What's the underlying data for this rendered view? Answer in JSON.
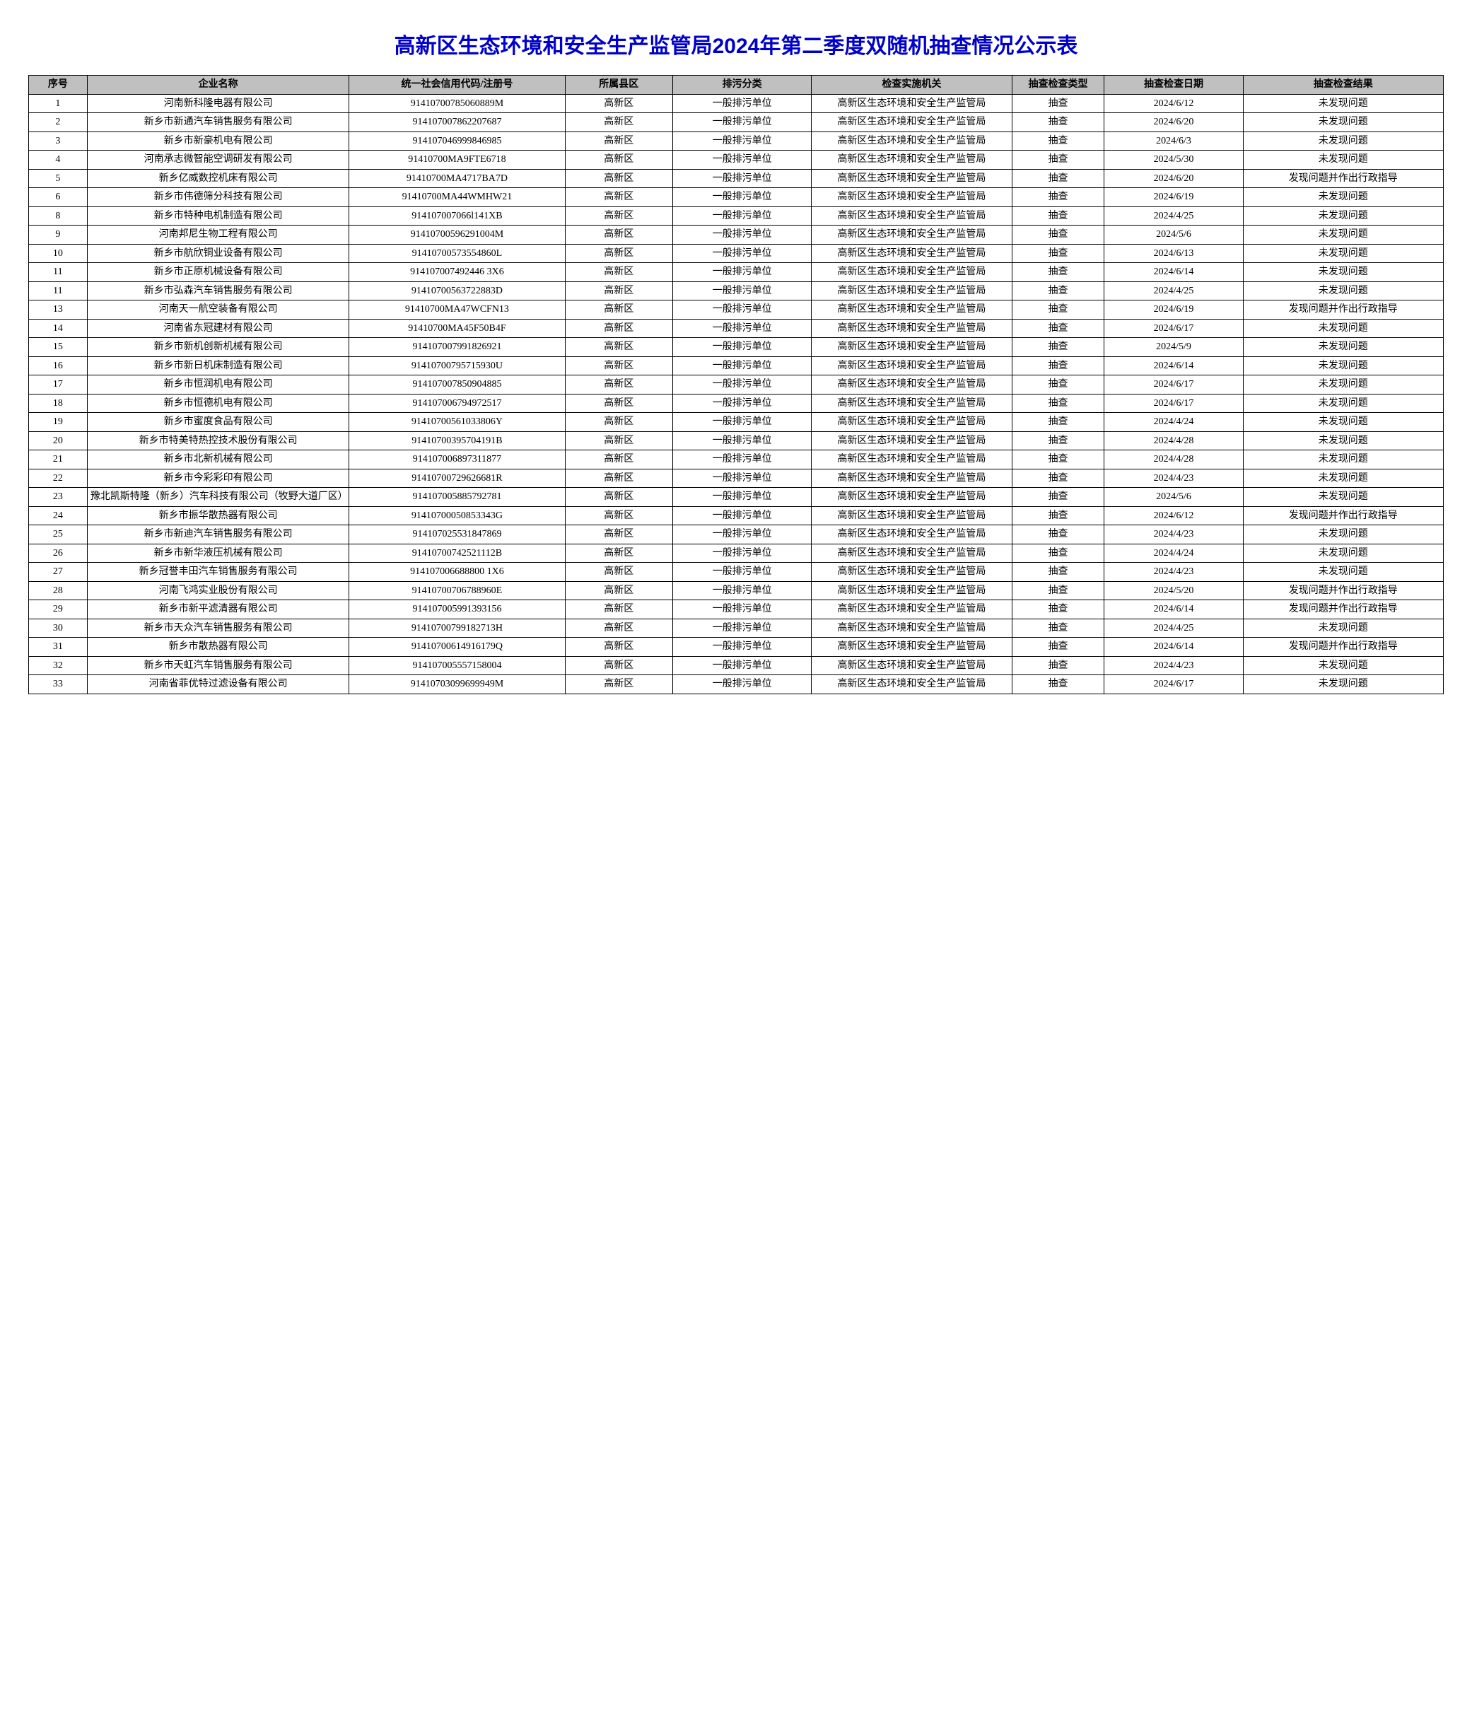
{
  "title": "高新区生态环境和安全生产监管局2024年第二季度双随机抽查情况公示表",
  "columns": [
    "序号",
    "企业名称",
    "统一社会信用代码/注册号",
    "所属县区",
    "排污分类",
    "检查实施机关",
    "抽查检查类型",
    "抽查检查日期",
    "抽查检查结果"
  ],
  "rows": [
    [
      "1",
      "河南新科隆电器有限公司",
      "91410700785060889M",
      "高新区",
      "一般排污单位",
      "高新区生态环境和安全生产监管局",
      "抽查",
      "2024/6/12",
      "未发现问题"
    ],
    [
      "2",
      "新乡市新通汽车销售服务有限公司",
      "914107007862207687",
      "高新区",
      "一般排污单位",
      "高新区生态环境和安全生产监管局",
      "抽查",
      "2024/6/20",
      "未发现问题"
    ],
    [
      "3",
      "新乡市新豪机电有限公司",
      "914107046999846985",
      "高新区",
      "一般排污单位",
      "高新区生态环境和安全生产监管局",
      "抽查",
      "2024/6/3",
      "未发现问题"
    ],
    [
      "4",
      "河南承志微智能空调研发有限公司",
      "91410700MA9FTE6718",
      "高新区",
      "一般排污单位",
      "高新区生态环境和安全生产监管局",
      "抽查",
      "2024/5/30",
      "未发现问题"
    ],
    [
      "5",
      "新乡亿威数控机床有限公司",
      "91410700MA4717BA7D",
      "高新区",
      "一般排污单位",
      "高新区生态环境和安全生产监管局",
      "抽查",
      "2024/6/20",
      "发现问题并作出行政指导"
    ],
    [
      "6",
      "新乡市伟德筛分科技有限公司",
      "91410700MA44WMHW21",
      "高新区",
      "一般排污单位",
      "高新区生态环境和安全生产监管局",
      "抽查",
      "2024/6/19",
      "未发现问题"
    ],
    [
      "8",
      "新乡市特种电机制造有限公司",
      "914107007066l141XB",
      "高新区",
      "一般排污单位",
      "高新区生态环境和安全生产监管局",
      "抽查",
      "2024/4/25",
      "未发现问题"
    ],
    [
      "9",
      "河南邦尼生物工程有限公司",
      "91410700596291004M",
      "高新区",
      "一般排污单位",
      "高新区生态环境和安全生产监管局",
      "抽查",
      "2024/5/6",
      "未发现问题"
    ],
    [
      "10",
      "新乡市航欣铜业设备有限公司",
      "91410700573554860L",
      "高新区",
      "一般排污单位",
      "高新区生态环境和安全生产监管局",
      "抽查",
      "2024/6/13",
      "未发现问题"
    ],
    [
      "11",
      "新乡市正原机械设备有限公司",
      "914107007492446 3X6",
      "高新区",
      "一般排污单位",
      "高新区生态环境和安全生产监管局",
      "抽查",
      "2024/6/14",
      "未发现问题"
    ],
    [
      "11",
      "新乡市弘森汽车销售服务有限公司",
      "91410700563722883D",
      "高新区",
      "一般排污单位",
      "高新区生态环境和安全生产监管局",
      "抽查",
      "2024/4/25",
      "未发现问题"
    ],
    [
      "13",
      "河南天一航空装备有限公司",
      "91410700MA47WCFN13",
      "高新区",
      "一般排污单位",
      "高新区生态环境和安全生产监管局",
      "抽查",
      "2024/6/19",
      "发现问题并作出行政指导"
    ],
    [
      "14",
      "河南省东冠建材有限公司",
      "91410700MA45F50B4F",
      "高新区",
      "一般排污单位",
      "高新区生态环境和安全生产监管局",
      "抽查",
      "2024/6/17",
      "未发现问题"
    ],
    [
      "15",
      "新乡市新机创新机械有限公司",
      "914107007991826921",
      "高新区",
      "一般排污单位",
      "高新区生态环境和安全生产监管局",
      "抽查",
      "2024/5/9",
      "未发现问题"
    ],
    [
      "16",
      "新乡市新日机床制造有限公司",
      "91410700795715930U",
      "高新区",
      "一般排污单位",
      "高新区生态环境和安全生产监管局",
      "抽查",
      "2024/6/14",
      "未发现问题"
    ],
    [
      "17",
      "新乡市恒润机电有限公司",
      "914107007850904885",
      "高新区",
      "一般排污单位",
      "高新区生态环境和安全生产监管局",
      "抽查",
      "2024/6/17",
      "未发现问题"
    ],
    [
      "18",
      "新乡市恒德机电有限公司",
      "914107006794972517",
      "高新区",
      "一般排污单位",
      "高新区生态环境和安全生产监管局",
      "抽查",
      "2024/6/17",
      "未发现问题"
    ],
    [
      "19",
      "新乡市蜜度食品有限公司",
      "91410700561033806Y",
      "高新区",
      "一般排污单位",
      "高新区生态环境和安全生产监管局",
      "抽查",
      "2024/4/24",
      "未发现问题"
    ],
    [
      "20",
      "新乡市特美特热控技术股份有限公司",
      "91410700395704191B",
      "高新区",
      "一般排污单位",
      "高新区生态环境和安全生产监管局",
      "抽查",
      "2024/4/28",
      "未发现问题"
    ],
    [
      "21",
      "新乡市北新机械有限公司",
      "914107006897311877",
      "高新区",
      "一般排污单位",
      "高新区生态环境和安全生产监管局",
      "抽查",
      "2024/4/28",
      "未发现问题"
    ],
    [
      "22",
      "新乡市今彩彩印有限公司",
      "91410700729626681R",
      "高新区",
      "一般排污单位",
      "高新区生态环境和安全生产监管局",
      "抽查",
      "2024/4/23",
      "未发现问题"
    ],
    [
      "23",
      "豫北凯斯特隆（新乡）汽车科技有限公司（牧野大道厂区）",
      "914107005885792781",
      "高新区",
      "一般排污单位",
      "高新区生态环境和安全生产监管局",
      "抽查",
      "2024/5/6",
      "未发现问题"
    ],
    [
      "24",
      "新乡市振华散热器有限公司",
      "91410700050853343G",
      "高新区",
      "一般排污单位",
      "高新区生态环境和安全生产监管局",
      "抽查",
      "2024/6/12",
      "发现问题并作出行政指导"
    ],
    [
      "25",
      "新乡市新迪汽车销售服务有限公司",
      "914107025531847869",
      "高新区",
      "一般排污单位",
      "高新区生态环境和安全生产监管局",
      "抽查",
      "2024/4/23",
      "未发现问题"
    ],
    [
      "26",
      "新乡市新华液压机械有限公司",
      "91410700742521112B",
      "高新区",
      "一般排污单位",
      "高新区生态环境和安全生产监管局",
      "抽查",
      "2024/4/24",
      "未发现问题"
    ],
    [
      "27",
      "新乡冠誉丰田汽车销售服务有限公司",
      "914107006688800 1X6",
      "高新区",
      "一般排污单位",
      "高新区生态环境和安全生产监管局",
      "抽查",
      "2024/4/23",
      "未发现问题"
    ],
    [
      "28",
      "河南飞鸿实业股份有限公司",
      "91410700706788960E",
      "高新区",
      "一般排污单位",
      "高新区生态环境和安全生产监管局",
      "抽查",
      "2024/5/20",
      "发现问题并作出行政指导"
    ],
    [
      "29",
      "新乡市新平滤清器有限公司",
      "914107005991393156",
      "高新区",
      "一般排污单位",
      "高新区生态环境和安全生产监管局",
      "抽查",
      "2024/6/14",
      "发现问题并作出行政指导"
    ],
    [
      "30",
      "新乡市天众汽车销售服务有限公司",
      "91410700799182713H",
      "高新区",
      "一般排污单位",
      "高新区生态环境和安全生产监管局",
      "抽查",
      "2024/4/25",
      "未发现问题"
    ],
    [
      "31",
      "新乡市散热器有限公司",
      "91410700614916179Q",
      "高新区",
      "一般排污单位",
      "高新区生态环境和安全生产监管局",
      "抽查",
      "2024/6/14",
      "发现问题并作出行政指导"
    ],
    [
      "32",
      "新乡市天虹汽车销售服务有限公司",
      "914107005557158004",
      "高新区",
      "一般排污单位",
      "高新区生态环境和安全生产监管局",
      "抽查",
      "2024/4/23",
      "未发现问题"
    ],
    [
      "33",
      "河南省菲优特过滤设备有限公司",
      "91410703099699949M",
      "高新区",
      "一般排污单位",
      "高新区生态环境和安全生产监管局",
      "抽查",
      "2024/6/17",
      "未发现问题"
    ]
  ]
}
